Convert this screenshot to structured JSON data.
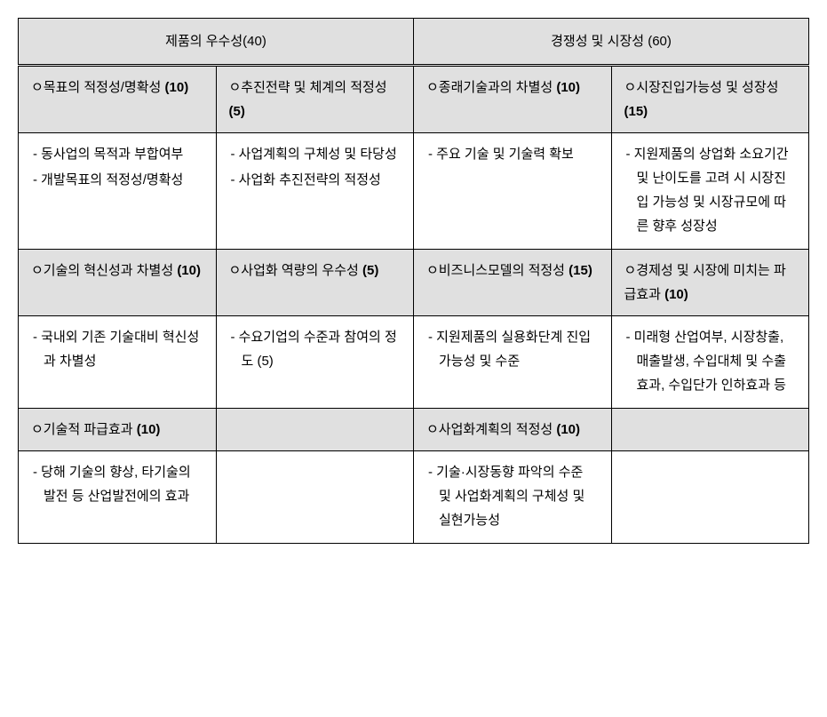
{
  "table": {
    "mainHeaders": {
      "left": "제품의 우수성(40)",
      "right": "경쟁성 및 시장성 (60)"
    },
    "row1": {
      "col1": {
        "title": "ㅇ목표의 적정성/명확성",
        "weight": "(10)"
      },
      "col2": {
        "title": "ㅇ추진전략 및 체계의 적정성",
        "weight": "(5)"
      },
      "col3": {
        "title": "ㅇ종래기술과의 차별성",
        "weight": "(10)"
      },
      "col4": {
        "title": "ㅇ시장진입가능성 및 성장성",
        "weight": "(15)"
      }
    },
    "row1content": {
      "col1": {
        "item1": "- 동사업의 목적과 부합여부",
        "item2": "- 개발목표의 적정성/명확성"
      },
      "col2": {
        "item1": "- 사업계획의 구체성 및 타당성",
        "item2": "- 사업화 추진전략의 적정성"
      },
      "col3": {
        "item1": "- 주요 기술 및 기술력 확보"
      },
      "col4": {
        "item1": "- 지원제품의 상업화 소요기간 및 난이도를 고려 시 시장진입 가능성 및 시장규모에 따른 향후 성장성"
      }
    },
    "row2": {
      "col1": {
        "title": "ㅇ기술의 혁신성과 차별성",
        "weight": "(10)"
      },
      "col2": {
        "title": "ㅇ사업화 역량의 우수성",
        "weight": "(5)"
      },
      "col3": {
        "title": "ㅇ비즈니스모델의 적정성",
        "weight": "(15)"
      },
      "col4": {
        "title": "ㅇ경제성 및 시장에 미치는 파급효과",
        "weight": "(10)"
      }
    },
    "row2content": {
      "col1": {
        "item1": "- 국내외 기존 기술대비 혁신성과 차별성"
      },
      "col2": {
        "item1": "- 수요기업의 수준과 참여의 정도 (5)"
      },
      "col3": {
        "item1": "- 지원제품의 실용화단계 진입 가능성 및 수준"
      },
      "col4": {
        "item1": "- 미래형 산업여부, 시장창출, 매출발생, 수입대체 및 수출효과, 수입단가 인하효과 등"
      }
    },
    "row3": {
      "col1": {
        "title": "ㅇ기술적 파급효과",
        "weight": "(10)"
      },
      "col3": {
        "title": "ㅇ사업화계획의 적정성",
        "weight": "(10)"
      }
    },
    "row3content": {
      "col1": {
        "item1": "- 당해 기술의 향상, 타기술의 발전 등 산업발전에의 효과"
      },
      "col3": {
        "item1": "- 기술·시장동향 파악의 수준 및 사업화계획의 구체성 및 실현가능성"
      }
    }
  }
}
